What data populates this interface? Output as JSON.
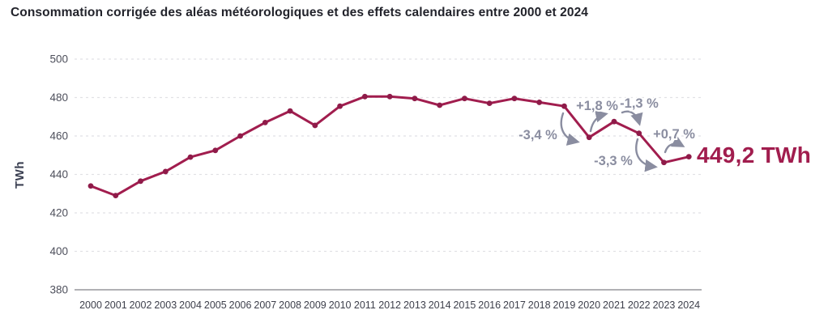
{
  "chart_data": {
    "type": "line",
    "title": "Consommation corrigée des aléas météorologiques et des effets calendaires entre 2000 et 2024",
    "xlabel": "",
    "ylabel": "TWh",
    "ylim": [
      380,
      500
    ],
    "yticks": [
      380,
      400,
      420,
      440,
      460,
      480,
      500
    ],
    "grid": "horizontal-dashed",
    "legend": "none",
    "categories": [
      2000,
      2001,
      2002,
      2003,
      2004,
      2005,
      2006,
      2007,
      2008,
      2009,
      2010,
      2011,
      2012,
      2013,
      2014,
      2015,
      2016,
      2017,
      2018,
      2019,
      2020,
      2021,
      2022,
      2023,
      2024
    ],
    "values": [
      434,
      429,
      436.5,
      441.5,
      449,
      452.5,
      460,
      467,
      473,
      465.5,
      475.5,
      480.5,
      480.5,
      479.5,
      476,
      479.5,
      477,
      479.5,
      477.5,
      475.5,
      459.3,
      467.5,
      461.4,
      446.2,
      449.2
    ],
    "end_label": "449,2 TWh",
    "annotations": [
      {
        "id": "pct-2020",
        "label": "-3,4 %"
      },
      {
        "id": "pct-2021",
        "label": "+1,8 %"
      },
      {
        "id": "pct-2022",
        "label": "-1,3 %"
      },
      {
        "id": "pct-2023",
        "label": "-3,3 %"
      },
      {
        "id": "pct-2024",
        "label": "+0,7 %"
      }
    ],
    "colors": {
      "line": "#A11D4E",
      "point": "#8F1B49",
      "annotation_gray": "#8A8DA0",
      "end_label": "#A11D4E",
      "gridline": "#E1E1E5",
      "axis_line": "#97979C",
      "y_tick_label": "#4E505C",
      "x_tick_label": "#3D3F4B",
      "y_axis_title": "#3C4153",
      "title": "#22232B"
    }
  }
}
